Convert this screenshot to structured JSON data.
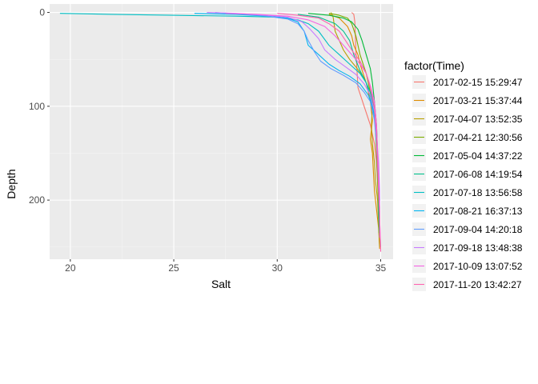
{
  "chart_data": {
    "type": "line",
    "title": "",
    "xlabel": "Salt",
    "ylabel": "Depth",
    "xlim": [
      19.0,
      35.6
    ],
    "ylim": [
      263,
      -9
    ],
    "y_reversed": true,
    "x_ticks": [
      20,
      25,
      30,
      35
    ],
    "y_ticks": [
      0,
      100,
      200
    ],
    "grid": true,
    "legend_position": "right",
    "legend_title": "factor(Time)",
    "colors": {
      "panel_background": "#ebebeb",
      "grid_major": "#ffffff",
      "grid_minor": "#f5f5f5"
    },
    "series": [
      {
        "name": "2017-02-15 15:29:47",
        "color": "#F8766D",
        "points": [
          [
            33.6,
            0
          ],
          [
            33.7,
            2
          ],
          [
            33.75,
            10
          ],
          [
            33.8,
            40
          ],
          [
            33.9,
            80
          ],
          [
            34.2,
            100
          ],
          [
            34.5,
            120
          ],
          [
            34.7,
            140
          ],
          [
            34.8,
            160
          ],
          [
            34.85,
            180
          ],
          [
            34.9,
            200
          ],
          [
            34.92,
            220
          ],
          [
            34.95,
            240
          ]
        ]
      },
      {
        "name": "2017-03-21 15:37:44",
        "color": "#DE8C00",
        "points": [
          [
            32.5,
            2
          ],
          [
            33.0,
            6
          ],
          [
            33.4,
            15
          ],
          [
            33.6,
            25
          ],
          [
            33.7,
            35
          ],
          [
            33.9,
            45
          ],
          [
            34.0,
            55
          ],
          [
            34.3,
            75
          ],
          [
            34.5,
            95
          ],
          [
            34.6,
            115
          ],
          [
            34.5,
            135
          ],
          [
            34.6,
            150
          ],
          [
            34.65,
            170
          ],
          [
            34.7,
            190
          ],
          [
            34.8,
            210
          ],
          [
            34.9,
            230
          ],
          [
            34.95,
            252
          ]
        ]
      },
      {
        "name": "2017-04-07 13:52:35",
        "color": "#B79F00",
        "points": [
          [
            32.6,
            0
          ],
          [
            32.7,
            5
          ],
          [
            32.8,
            20
          ],
          [
            33.0,
            30
          ],
          [
            33.2,
            40
          ],
          [
            33.5,
            50
          ],
          [
            33.8,
            58
          ],
          [
            34.2,
            70
          ],
          [
            34.5,
            85
          ],
          [
            34.6,
            100
          ],
          [
            34.55,
            120
          ],
          [
            34.6,
            140
          ],
          [
            34.7,
            160
          ],
          [
            34.75,
            180
          ],
          [
            34.85,
            200
          ],
          [
            34.9,
            225
          ],
          [
            34.95,
            250
          ]
        ]
      },
      {
        "name": "2017-04-21 12:30:56",
        "color": "#7CAE00",
        "points": [
          [
            32.5,
            1
          ],
          [
            33.0,
            3
          ],
          [
            33.4,
            6
          ],
          [
            33.6,
            12
          ],
          [
            33.8,
            25
          ],
          [
            34.0,
            45
          ],
          [
            34.3,
            65
          ],
          [
            34.5,
            85
          ],
          [
            34.7,
            105
          ],
          [
            34.75,
            125
          ],
          [
            34.8,
            150
          ],
          [
            34.85,
            180
          ],
          [
            34.9,
            210
          ],
          [
            34.92,
            235
          ]
        ]
      },
      {
        "name": "2017-05-04 14:37:22",
        "color": "#00BA38",
        "points": [
          [
            31.5,
            1
          ],
          [
            32.5,
            3
          ],
          [
            33.2,
            6
          ],
          [
            33.6,
            10
          ],
          [
            33.9,
            18
          ],
          [
            34.1,
            30
          ],
          [
            34.3,
            45
          ],
          [
            34.5,
            60
          ],
          [
            34.6,
            75
          ],
          [
            34.7,
            95
          ],
          [
            34.8,
            120
          ],
          [
            34.85,
            150
          ],
          [
            34.9,
            180
          ],
          [
            34.95,
            210
          ],
          [
            34.95,
            235
          ]
        ]
      },
      {
        "name": "2017-06-08 14:19:54",
        "color": "#00C08B",
        "points": [
          [
            31.0,
            2
          ],
          [
            32.0,
            5
          ],
          [
            32.8,
            12
          ],
          [
            33.2,
            20
          ],
          [
            33.5,
            30
          ],
          [
            33.7,
            45
          ],
          [
            34.0,
            62
          ],
          [
            34.3,
            75
          ],
          [
            34.5,
            85
          ],
          [
            34.7,
            100
          ],
          [
            34.8,
            125
          ],
          [
            34.85,
            155
          ],
          [
            34.9,
            185
          ],
          [
            34.9,
            215
          ],
          [
            34.95,
            240
          ]
        ]
      },
      {
        "name": "2017-07-18 13:56:58",
        "color": "#00BFC4",
        "points": [
          [
            19.5,
            1
          ],
          [
            22,
            2
          ],
          [
            25,
            3
          ],
          [
            28,
            4
          ],
          [
            30,
            5
          ],
          [
            31,
            8
          ],
          [
            31.5,
            12
          ],
          [
            32.0,
            20
          ],
          [
            32.5,
            35
          ],
          [
            33.0,
            45
          ],
          [
            33.5,
            55
          ],
          [
            34.0,
            65
          ],
          [
            34.3,
            75
          ],
          [
            34.5,
            90
          ],
          [
            34.7,
            110
          ],
          [
            34.8,
            135
          ],
          [
            34.85,
            160
          ],
          [
            34.9,
            185
          ],
          [
            34.95,
            210
          ]
        ]
      },
      {
        "name": "2017-08-21 16:37:13",
        "color": "#00B4F0",
        "points": [
          [
            26.0,
            1
          ],
          [
            28,
            2
          ],
          [
            29.5,
            4
          ],
          [
            30.5,
            6
          ],
          [
            31.0,
            10
          ],
          [
            31.3,
            20
          ],
          [
            31.5,
            35
          ],
          [
            32.0,
            45
          ],
          [
            32.5,
            55
          ],
          [
            33.0,
            62
          ],
          [
            33.5,
            68
          ],
          [
            34.0,
            76
          ],
          [
            34.4,
            88
          ],
          [
            34.6,
            100
          ],
          [
            34.8,
            125
          ],
          [
            34.85,
            150
          ],
          [
            34.9,
            175
          ],
          [
            34.95,
            200
          ]
        ]
      },
      {
        "name": "2017-09-04 14:20:18",
        "color": "#619CFF",
        "points": [
          [
            27.0,
            0
          ],
          [
            28.5,
            2
          ],
          [
            29.5,
            4
          ],
          [
            30.5,
            7
          ],
          [
            31.0,
            12
          ],
          [
            31.3,
            20
          ],
          [
            31.5,
            30
          ],
          [
            31.8,
            42
          ],
          [
            32.1,
            52
          ],
          [
            32.6,
            60
          ],
          [
            33.2,
            67
          ],
          [
            33.8,
            75
          ],
          [
            34.2,
            85
          ],
          [
            34.5,
            95
          ],
          [
            34.7,
            115
          ],
          [
            34.8,
            140
          ],
          [
            34.85,
            165
          ],
          [
            34.9,
            190
          ],
          [
            34.95,
            215
          ]
        ]
      },
      {
        "name": "2017-09-18 13:48:38",
        "color": "#C77CFF",
        "points": [
          [
            26.6,
            0
          ],
          [
            28,
            1
          ],
          [
            29.5,
            3
          ],
          [
            30.5,
            5
          ],
          [
            31.2,
            10
          ],
          [
            31.6,
            18
          ],
          [
            32.0,
            28
          ],
          [
            32.3,
            40
          ],
          [
            32.8,
            50
          ],
          [
            33.3,
            58
          ],
          [
            33.8,
            66
          ],
          [
            34.2,
            76
          ],
          [
            34.5,
            88
          ],
          [
            34.7,
            105
          ],
          [
            34.8,
            130
          ],
          [
            34.9,
            160
          ],
          [
            34.95,
            190
          ],
          [
            34.95,
            220
          ],
          [
            35.0,
            250
          ]
        ]
      },
      {
        "name": "2017-10-09 13:07:52",
        "color": "#F564E3",
        "points": [
          [
            27.5,
            1
          ],
          [
            29,
            2
          ],
          [
            30.5,
            4
          ],
          [
            31.5,
            8
          ],
          [
            32.3,
            15
          ],
          [
            32.8,
            25
          ],
          [
            33.2,
            35
          ],
          [
            33.6,
            45
          ],
          [
            34.0,
            55
          ],
          [
            34.3,
            65
          ],
          [
            34.5,
            78
          ],
          [
            34.7,
            95
          ],
          [
            34.8,
            120
          ],
          [
            34.85,
            150
          ],
          [
            34.9,
            180
          ],
          [
            34.95,
            210
          ],
          [
            34.95,
            240
          ]
        ]
      },
      {
        "name": "2017-11-20 13:42:27",
        "color": "#FF64B0",
        "points": [
          [
            30.0,
            1
          ],
          [
            31.0,
            3
          ],
          [
            32.0,
            6
          ],
          [
            32.5,
            12
          ],
          [
            33.0,
            20
          ],
          [
            33.3,
            30
          ],
          [
            33.6,
            40
          ],
          [
            34.0,
            52
          ],
          [
            34.3,
            65
          ],
          [
            34.5,
            80
          ],
          [
            34.7,
            100
          ],
          [
            34.8,
            130
          ],
          [
            34.85,
            160
          ],
          [
            34.9,
            190
          ],
          [
            34.95,
            220
          ],
          [
            35.0,
            255
          ]
        ]
      }
    ]
  }
}
